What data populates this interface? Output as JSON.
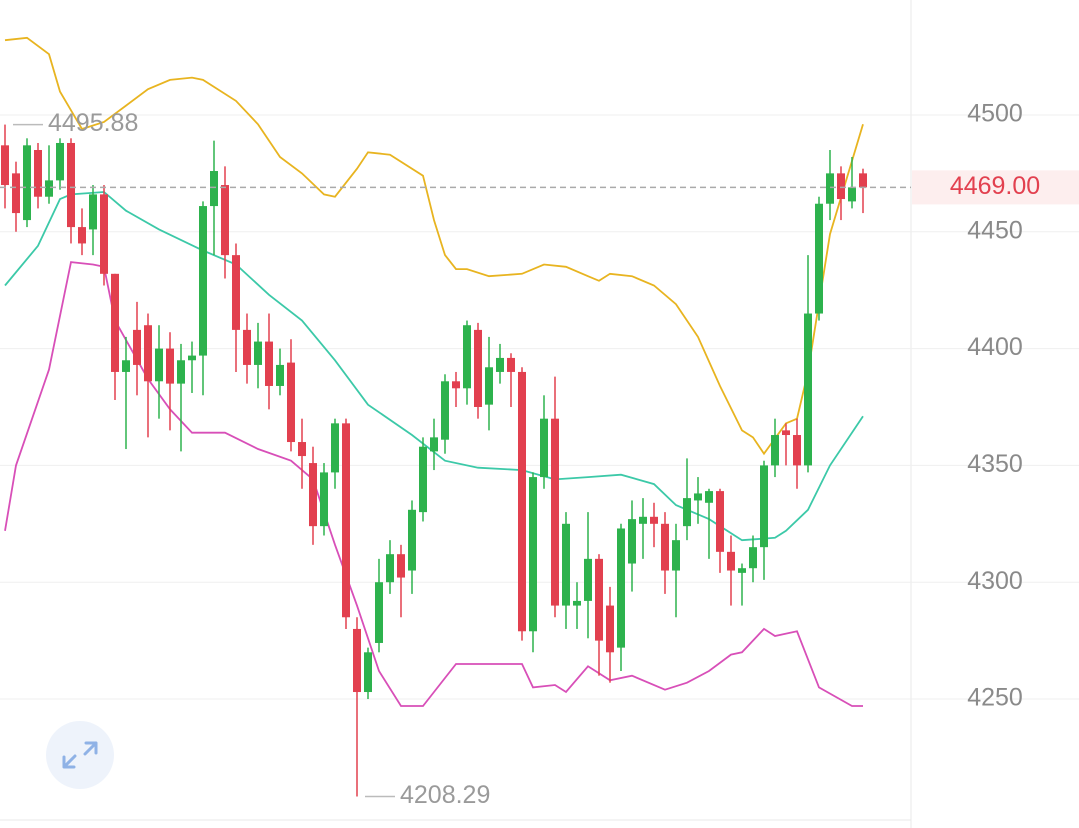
{
  "chart_data": {
    "type": "candlestick",
    "ylim": [
      4194.8,
      4549.2
    ],
    "yticks": [
      4250,
      4300,
      4350,
      4400,
      4450,
      4500
    ],
    "grid": true,
    "up_color": "#2db24d",
    "down_color": "#e2404f",
    "open": [
      4487,
      4475,
      4455,
      4485,
      4465,
      4472,
      4488,
      4452,
      4451,
      4466,
      4432,
      4390,
      4408,
      4410,
      4386,
      4400,
      4385,
      4395,
      4397,
      4461,
      4470,
      4440,
      4408,
      4393,
      4403,
      4384,
      4394,
      4360,
      4351,
      4324,
      4347,
      4368,
      4280,
      4253,
      4274,
      4300,
      4312,
      4305,
      4330,
      4356,
      4361,
      4386,
      4383,
      4408,
      4376,
      4390,
      4396,
      4390,
      4279,
      4345,
      4370,
      4290,
      4290,
      4292,
      4310,
      4290,
      4272,
      4308,
      4325,
      4328,
      4325,
      4305,
      4324,
      4335,
      4334,
      4339,
      4313,
      4304,
      4306,
      4315,
      4350,
      4365,
      4363,
      4350,
      4415,
      4462,
      4475,
      4463,
      4475
    ],
    "high": [
      4495.88,
      4480,
      4490,
      4488,
      4487,
      4490,
      4490,
      4460,
      4470,
      4470,
      4432,
      4405,
      4420,
      4415,
      4410,
      4407,
      4402,
      4403,
      4463,
      4489,
      4478,
      4445,
      4415,
      4411,
      4415,
      4400,
      4404,
      4370,
      4358,
      4351,
      4370,
      4370,
      4285,
      4272,
      4310,
      4318,
      4316,
      4335,
      4362,
      4370,
      4389,
      4390,
      4412,
      4411,
      4405,
      4402,
      4398,
      4392,
      4347,
      4380,
      4388,
      4330,
      4300,
      4330,
      4312,
      4298,
      4325,
      4335,
      4336,
      4334,
      4330,
      4325,
      4353,
      4345,
      4340,
      4340,
      4320,
      4308,
      4320,
      4352,
      4370,
      4368,
      4370,
      4440,
      4465,
      4485,
      4478,
      4482,
      4477
    ],
    "low": [
      4460,
      4450,
      4452,
      4460,
      4462,
      4468,
      4445,
      4440,
      4440,
      4427,
      4378,
      4357,
      4380,
      4362,
      4370,
      4365,
      4356,
      4381,
      4380,
      4440,
      4430,
      4390,
      4385,
      4383,
      4374,
      4380,
      4356,
      4340,
      4316,
      4320,
      4340,
      4280,
      4208.29,
      4250,
      4270,
      4295,
      4285,
      4295,
      4326,
      4348,
      4355,
      4375,
      4376,
      4370,
      4365,
      4385,
      4375,
      4275,
      4270,
      4340,
      4285,
      4280,
      4280,
      4276,
      4260,
      4257,
      4262,
      4296,
      4310,
      4315,
      4295,
      4285,
      4318,
      4325,
      4310,
      4304,
      4290,
      4290,
      4300,
      4301,
      4345,
      4350,
      4340,
      4347,
      4412,
      4455,
      4455,
      4460,
      4458
    ],
    "close": [
      4470,
      4458,
      4487,
      4465,
      4472,
      4488,
      4452,
      4445,
      4466,
      4432,
      4390,
      4395,
      4393,
      4386,
      4400,
      4385,
      4395,
      4397,
      4461,
      4476,
      4440,
      4408,
      4393,
      4403,
      4384,
      4393,
      4360,
      4354,
      4324,
      4347,
      4368,
      4285,
      4253,
      4270,
      4300,
      4312,
      4302,
      4331,
      4358,
      4362,
      4386,
      4383,
      4410,
      4375,
      4392,
      4396,
      4390,
      4279,
      4345,
      4370,
      4290,
      4325,
      4292,
      4310,
      4275,
      4270,
      4323,
      4327,
      4328,
      4325,
      4305,
      4318,
      4336,
      4338,
      4339,
      4313,
      4305,
      4306,
      4315,
      4350,
      4363,
      4363,
      4350,
      4415,
      4462,
      4475,
      4464,
      4469,
      4469
    ],
    "series": [
      {
        "color": "#e8b420",
        "x": [
          0,
          2,
          4,
          5,
          6,
          7,
          9,
          11,
          13,
          15,
          17,
          18,
          21,
          23,
          25,
          27,
          29,
          30,
          32,
          33,
          35,
          38,
          39,
          40,
          41,
          42,
          44,
          47,
          49,
          51,
          53,
          54,
          55,
          57,
          59,
          61,
          63,
          65,
          67,
          68,
          69,
          71,
          72,
          73,
          75,
          78
        ],
        "values": [
          4532,
          4533,
          4526,
          4510,
          4502,
          4494,
          4497,
          4504,
          4511,
          4515,
          4516,
          4515,
          4506,
          4496,
          4482,
          4475,
          4466,
          4465,
          4477,
          4484,
          4483,
          4474,
          4455,
          4440,
          4434,
          4434,
          4431,
          4432,
          4436,
          4435,
          4431,
          4429,
          4432,
          4431,
          4427,
          4419,
          4405,
          4384,
          4365,
          4362,
          4355,
          4368,
          4370,
          4390,
          4449,
          4496
        ]
      },
      {
        "color": "#3cc9a8",
        "x": [
          0,
          3,
          5,
          6,
          9,
          11,
          14,
          18,
          21,
          24,
          27,
          30,
          33,
          37,
          40,
          43,
          47,
          50,
          53,
          56,
          59,
          61,
          64,
          67,
          70,
          71,
          73,
          75,
          78
        ],
        "values": [
          4427,
          4444,
          4464,
          4466,
          4467,
          4459,
          4451,
          4442,
          4436,
          4423,
          4412,
          4395,
          4376,
          4363,
          4352,
          4349,
          4348,
          4344,
          4345,
          4346,
          4342,
          4333,
          4327,
          4318,
          4319,
          4322,
          4331,
          4350,
          4371
        ]
      },
      {
        "color": "#d84fb8",
        "x": [
          0,
          1,
          4,
          6,
          8,
          9,
          10,
          13,
          15,
          17,
          20,
          23,
          26,
          28,
          30,
          32,
          34,
          36,
          38,
          39,
          41,
          44,
          47,
          48,
          50,
          51,
          53,
          55,
          57,
          60,
          62,
          64,
          66,
          67,
          69,
          70,
          72,
          74,
          77,
          78
        ],
        "values": [
          4322,
          4350,
          4391,
          4437,
          4436,
          4435,
          4412,
          4387,
          4374,
          4364,
          4364,
          4357,
          4352,
          4344,
          4316,
          4290,
          4262,
          4247,
          4247,
          4253,
          4265,
          4265,
          4265,
          4255,
          4256,
          4253,
          4264,
          4258,
          4260,
          4254,
          4257,
          4262,
          4269,
          4270,
          4280,
          4277,
          4279,
          4255,
          4247,
          4247
        ]
      }
    ],
    "annotations": [
      {
        "value": 4495.88,
        "index": 0
      },
      {
        "value": 4208.29,
        "index": 32
      }
    ],
    "last_price": {
      "value": 4469,
      "label": "4469.00"
    }
  }
}
